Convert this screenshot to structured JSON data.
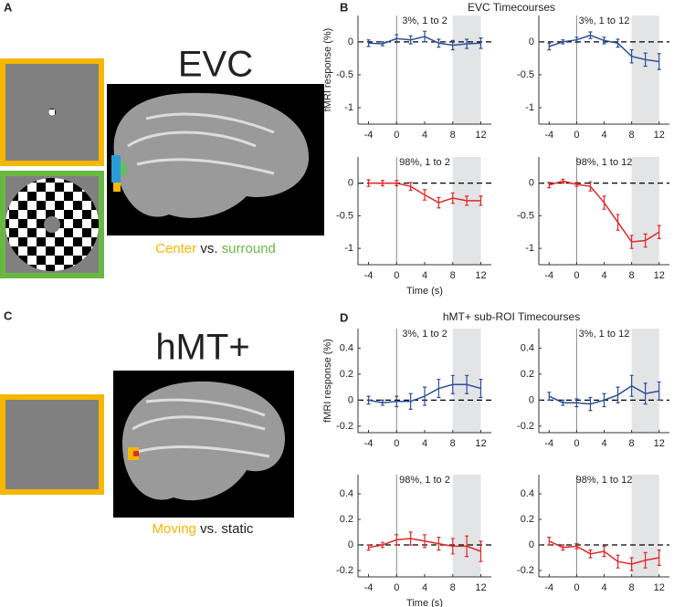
{
  "figure": {
    "panel_labels": [
      "A",
      "B",
      "C",
      "D"
    ],
    "group_titles": [
      "EVC Timecourses",
      "hMT+ sub-ROI Timecourses"
    ],
    "evc_label": "EVC",
    "evc_caption": {
      "a": "Center",
      "vs": "vs.",
      "b": "surround"
    },
    "hmt_label": "hMT+",
    "hmt_caption": {
      "a": "Moving",
      "vs": "vs. static"
    }
  },
  "chart_data": [
    {
      "type": "line",
      "title": "3%, 1 to 2",
      "ylabel": "fMRI response (%)",
      "color": "#2b4f9a",
      "x": [
        -4,
        -2,
        0,
        2,
        4,
        6,
        8,
        10,
        12
      ],
      "values": [
        -0.02,
        -0.03,
        0.05,
        0.03,
        0.08,
        -0.02,
        -0.05,
        -0.03,
        -0.02
      ],
      "errors": [
        0.05,
        0.03,
        0.06,
        0.06,
        0.08,
        0.06,
        0.07,
        0.07,
        0.08
      ],
      "xlim": [
        -5.5,
        13.5
      ],
      "xticks": [
        -4,
        0,
        4,
        8,
        12
      ],
      "ylim": [
        -1.25,
        0.4
      ],
      "yticks": [
        -1,
        -0.5,
        0
      ],
      "shade_x": [
        8,
        12
      ],
      "vline_x": 0,
      "hline_y": 0
    },
    {
      "type": "line",
      "title": "3%, 1 to 12",
      "color": "#2b4f9a",
      "x": [
        -4,
        -2,
        0,
        2,
        4,
        6,
        8,
        10,
        12
      ],
      "values": [
        -0.07,
        0.0,
        0.03,
        0.1,
        0.02,
        -0.02,
        -0.22,
        -0.27,
        -0.3
      ],
      "errors": [
        0.05,
        0.03,
        0.04,
        0.05,
        0.05,
        0.06,
        0.1,
        0.1,
        0.12
      ],
      "xlim": [
        -5.5,
        13.5
      ],
      "xticks": [
        -4,
        0,
        4,
        8,
        12
      ],
      "ylim": [
        -1.25,
        0.4
      ],
      "yticks": [
        -1,
        -0.5,
        0
      ],
      "shade_x": [
        8,
        12
      ],
      "vline_x": 0,
      "hline_y": 0
    },
    {
      "type": "line",
      "title": "98%, 1 to 2",
      "xlabel": "Time (s)",
      "color": "#e02828",
      "x": [
        -4,
        -2,
        0,
        2,
        4,
        6,
        8,
        10,
        12
      ],
      "values": [
        0.0,
        0.0,
        0.0,
        -0.05,
        -0.18,
        -0.3,
        -0.23,
        -0.27,
        -0.27
      ],
      "errors": [
        0.05,
        0.04,
        0.04,
        0.06,
        0.08,
        0.08,
        0.08,
        0.07,
        0.07
      ],
      "xlim": [
        -5.5,
        13.5
      ],
      "xticks": [
        -4,
        0,
        4,
        8,
        12
      ],
      "ylim": [
        -1.25,
        0.4
      ],
      "yticks": [
        -1,
        -0.5,
        0
      ],
      "shade_x": [
        8,
        12
      ],
      "vline_x": 0,
      "hline_y": 0
    },
    {
      "type": "line",
      "title": "98%, 1 to 12",
      "color": "#e02828",
      "x": [
        -4,
        -2,
        0,
        2,
        4,
        6,
        8,
        10,
        12
      ],
      "values": [
        -0.03,
        0.03,
        -0.02,
        -0.05,
        -0.3,
        -0.6,
        -0.9,
        -0.88,
        -0.75
      ],
      "errors": [
        0.04,
        0.03,
        0.03,
        0.07,
        0.1,
        0.12,
        0.1,
        0.1,
        0.1
      ],
      "xlim": [
        -5.5,
        13.5
      ],
      "xticks": [
        -4,
        0,
        4,
        8,
        12
      ],
      "ylim": [
        -1.25,
        0.4
      ],
      "yticks": [
        -1,
        -0.5,
        0
      ],
      "shade_x": [
        8,
        12
      ],
      "vline_x": 0,
      "hline_y": 0
    },
    {
      "type": "line",
      "title": "3%, 1 to 2",
      "ylabel": "fMRI response (%)",
      "color": "#2b4f9a",
      "x": [
        -4,
        -2,
        0,
        2,
        4,
        6,
        8,
        10,
        12
      ],
      "values": [
        0.0,
        -0.02,
        -0.01,
        -0.01,
        0.03,
        0.09,
        0.12,
        0.12,
        0.09
      ],
      "errors": [
        0.03,
        0.02,
        0.04,
        0.06,
        0.07,
        0.07,
        0.07,
        0.07,
        0.07
      ],
      "xlim": [
        -5.5,
        13.5
      ],
      "xticks": [
        -4,
        0,
        4,
        8,
        12
      ],
      "ylim": [
        -0.25,
        0.55
      ],
      "yticks": [
        -0.2,
        0,
        0.2,
        0.4
      ],
      "shade_x": [
        8,
        12
      ],
      "vline_x": 0,
      "hline_y": 0
    },
    {
      "type": "line",
      "title": "3%, 1 to 12",
      "color": "#2b4f9a",
      "x": [
        -4,
        -2,
        0,
        2,
        4,
        6,
        8,
        10,
        12
      ],
      "values": [
        0.03,
        -0.02,
        -0.02,
        -0.03,
        0.0,
        0.04,
        0.11,
        0.05,
        0.07
      ],
      "errors": [
        0.03,
        0.02,
        0.03,
        0.05,
        0.05,
        0.06,
        0.08,
        0.08,
        0.07
      ],
      "xlim": [
        -5.5,
        13.5
      ],
      "xticks": [
        -4,
        0,
        4,
        8,
        12
      ],
      "ylim": [
        -0.25,
        0.55
      ],
      "yticks": [
        -0.2,
        0,
        0.2,
        0.4
      ],
      "shade_x": [
        8,
        12
      ],
      "vline_x": 0,
      "hline_y": 0
    },
    {
      "type": "line",
      "title": "98%, 1 to 2",
      "xlabel": "Time (s)",
      "color": "#e02828",
      "x": [
        -4,
        -2,
        0,
        2,
        4,
        6,
        8,
        10,
        12
      ],
      "values": [
        -0.02,
        0.0,
        0.04,
        0.05,
        0.03,
        0.01,
        -0.01,
        -0.01,
        -0.05
      ],
      "errors": [
        0.02,
        0.02,
        0.04,
        0.05,
        0.05,
        0.05,
        0.06,
        0.08,
        0.08
      ],
      "xlim": [
        -5.5,
        13.5
      ],
      "xticks": [
        -4,
        0,
        4,
        8,
        12
      ],
      "ylim": [
        -0.25,
        0.55
      ],
      "yticks": [
        -0.2,
        0,
        0.2,
        0.4
      ],
      "shade_x": [
        8,
        12
      ],
      "vline_x": 0,
      "hline_y": 0
    },
    {
      "type": "line",
      "title": "98%, 1 to 12",
      "color": "#e02828",
      "x": [
        -4,
        -2,
        0,
        2,
        4,
        6,
        8,
        10,
        12
      ],
      "values": [
        0.03,
        -0.02,
        -0.01,
        -0.07,
        -0.05,
        -0.13,
        -0.15,
        -0.12,
        -0.1
      ],
      "errors": [
        0.03,
        0.02,
        0.02,
        0.03,
        0.04,
        0.05,
        0.05,
        0.06,
        0.06
      ],
      "xlim": [
        -5.5,
        13.5
      ],
      "xticks": [
        -4,
        0,
        4,
        8,
        12
      ],
      "ylim": [
        -0.25,
        0.55
      ],
      "yticks": [
        -0.2,
        0,
        0.2,
        0.4
      ],
      "shade_x": [
        8,
        12
      ],
      "vline_x": 0,
      "hline_y": 0
    }
  ]
}
